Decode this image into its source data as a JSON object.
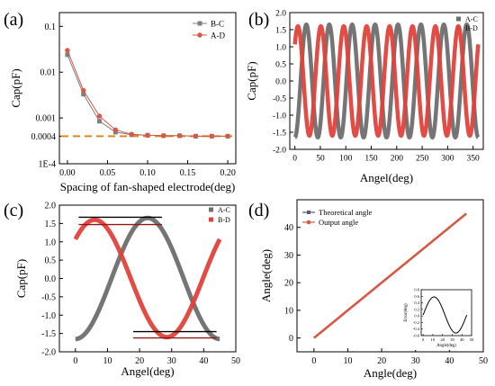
{
  "chart_data": [
    {
      "panel": "(a)",
      "type": "line",
      "xlabel": "Spacing of fan-shaped electrode(deg)",
      "ylabel": "Cap(pF)",
      "yscale": "log",
      "xlim": [
        -0.01,
        0.21
      ],
      "ylim": [
        0.0001,
        0.2
      ],
      "xticks": [
        0.0,
        0.05,
        0.1,
        0.15,
        0.2
      ],
      "xticklabels": [
        "0.00",
        "0.05",
        "0.10",
        "0.15",
        "0.20"
      ],
      "yticks": [
        0.0001,
        0.0004,
        0.001,
        0.01,
        0.1
      ],
      "yticklabels": [
        "1E-4",
        "0.0004",
        "0.001",
        "0.01",
        "0.1"
      ],
      "legend_position": "top-right",
      "x": [
        0.0,
        0.02,
        0.04,
        0.06,
        0.08,
        0.1,
        0.12,
        0.14,
        0.16,
        0.18,
        0.2
      ],
      "series": [
        {
          "name": "B-C",
          "color": "#7f7f7f",
          "marker": "square",
          "values": [
            0.024,
            0.0033,
            0.00085,
            0.00049,
            0.00043,
            0.00042,
            0.00041,
            0.00041,
            0.0004,
            0.0004,
            0.0004
          ]
        },
        {
          "name": "A-D",
          "color": "#d55a45",
          "marker": "circle",
          "values": [
            0.03,
            0.004,
            0.0011,
            0.00055,
            0.00044,
            0.00042,
            0.00041,
            0.00041,
            0.0004,
            0.0004,
            0.0004
          ]
        }
      ],
      "reference_line": {
        "y": 0.0004,
        "color": "#e3861b",
        "style": "dashed"
      }
    },
    {
      "panel": "(b)",
      "type": "line",
      "xlabel": "Angel(deg)",
      "ylabel": "Cap(pF)",
      "xlim": [
        -10,
        370
      ],
      "ylim": [
        -2.0,
        2.0
      ],
      "xticks": [
        0,
        50,
        100,
        150,
        200,
        250,
        300,
        350
      ],
      "yticks": [
        -2.0,
        -1.5,
        -1.0,
        -0.5,
        0.0,
        0.5,
        1.0,
        1.5,
        2.0
      ],
      "yticklabels": [
        "-2.0",
        "-1.5",
        "-1.0",
        "-0.5",
        "0.0",
        "0.5",
        "1.0",
        "1.5",
        "2.0"
      ],
      "legend_position": "top-right",
      "period_deg": 45,
      "series": [
        {
          "name": "A-C",
          "color": "#6e6e6e",
          "amplitude": 1.65,
          "phase_deg": -90
        },
        {
          "name": "B-D",
          "color": "#e2423b",
          "amplitude": 1.6,
          "phase_deg": 42
        }
      ]
    },
    {
      "panel": "(c)",
      "type": "line",
      "xlabel": "Angel(deg)",
      "ylabel": "Cap(pF)",
      "xlim": [
        -5,
        50
      ],
      "ylim": [
        -2.0,
        2.0
      ],
      "xticks": [
        0,
        10,
        20,
        30,
        40,
        50
      ],
      "yticks": [
        -2.0,
        -1.5,
        -1.0,
        -0.5,
        0.0,
        0.5,
        1.0,
        1.5,
        2.0
      ],
      "yticklabels": [
        "-2.0",
        "-1.5",
        "-1.0",
        "-0.5",
        "0.0",
        "0.5",
        "1.0",
        "1.5",
        "2.0"
      ],
      "legend_position": "top-right",
      "period_deg": 45,
      "series": [
        {
          "name": "A-C",
          "color": "#6e6e6e",
          "amplitude": 1.65,
          "phase_deg": -90
        },
        {
          "name": "B-D",
          "color": "#e2423b",
          "amplitude": 1.6,
          "phase_deg": 42
        }
      ],
      "level_lines": [
        {
          "y": 1.67,
          "x": [
            1,
            27
          ],
          "color": "#000000"
        },
        {
          "y": 1.47,
          "x": [
            1,
            27
          ],
          "color": "#8b1a1a"
        },
        {
          "y": -1.45,
          "x": [
            18,
            44
          ],
          "color": "#000000"
        },
        {
          "y": -1.62,
          "x": [
            18,
            44
          ],
          "color": "#8b1a1a"
        }
      ]
    },
    {
      "panel": "(d)",
      "type": "line",
      "xlabel": "Angle(deg)",
      "ylabel": "Angle(deg)",
      "xlim": [
        -5,
        50
      ],
      "ylim": [
        -5,
        50
      ],
      "xticks": [
        0,
        10,
        20,
        30,
        40,
        50
      ],
      "yticks": [
        0,
        10,
        20,
        30,
        40
      ],
      "legend_position": "top-left",
      "series": [
        {
          "name": "Theoretical angle",
          "color": "#5a5a7a",
          "x": [
            0,
            45
          ],
          "values": [
            0,
            45
          ]
        },
        {
          "name": "Output angle",
          "color": "#d55a45",
          "x": [
            0,
            45
          ],
          "values": [
            0,
            45
          ]
        }
      ],
      "inset": {
        "xlabel": "Angle(deg)",
        "ylabel": "Error(deg)",
        "xlim": [
          -2,
          50
        ],
        "ylim": [
          -0.6,
          0.8
        ],
        "xticks": [
          0,
          10,
          20,
          30,
          40,
          50
        ],
        "yticks": [
          -0.6,
          -0.4,
          -0.2,
          0.0,
          0.2,
          0.4,
          0.6,
          0.8
        ],
        "yticklabels": [
          "-0.6",
          "-0.4",
          "-0.2",
          "0.0",
          "0.2",
          "0.4",
          "0.6",
          "0.8"
        ],
        "color": "#000000",
        "amplitude": 0.55,
        "offset": 0.03,
        "period_deg": 45,
        "x_range": [
          0,
          45
        ]
      }
    }
  ]
}
